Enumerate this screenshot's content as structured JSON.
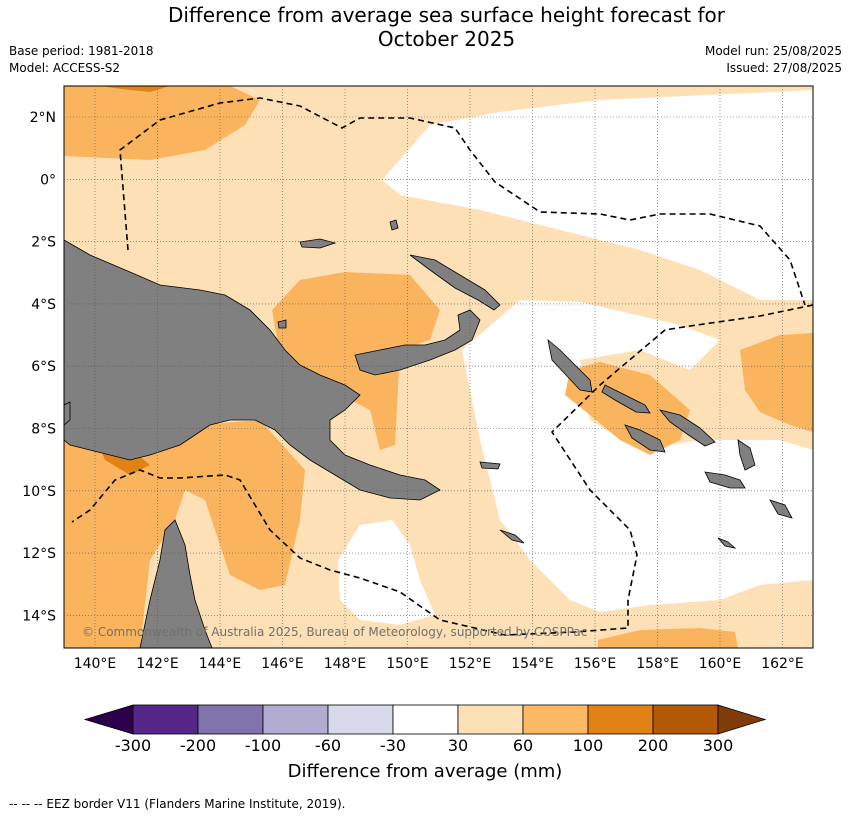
{
  "title_line1": "Difference from average sea surface height forecast for",
  "title_line2": "October 2025",
  "base_period": "Base period: 1981-2018",
  "model": "Model: ACCESS-S2",
  "model_run": "Model run: 25/08/2025",
  "issued": "Issued: 27/08/2025",
  "copyright": "© Commonwealth of Australia 2025, Bureau of Meteorology, supported by COSPPac",
  "footer": "-- -- -- EEZ border V11 (Flanders Marine Institute, 2019).",
  "map": {
    "lat_ticks": [
      "2°N",
      "0°",
      "2°S",
      "4°S",
      "6°S",
      "8°S",
      "10°S",
      "12°S",
      "14°S"
    ],
    "lon_ticks": [
      "140°E",
      "142°E",
      "144°E",
      "146°E",
      "148°E",
      "150°E",
      "152°E",
      "154°E",
      "156°E",
      "158°E",
      "160°E",
      "162°E"
    ],
    "colors": {
      "land": "#808080",
      "band_30_60": "#fde0b6",
      "band_60_100": "#fbb45e",
      "band_100_200": "#e08214"
    }
  },
  "colorbar": {
    "label": "Difference from average (mm)",
    "ticks": [
      "-300",
      "-200",
      "-100",
      "-60",
      "-30",
      "30",
      "60",
      "100",
      "200",
      "300"
    ],
    "colors": [
      "#542788",
      "#8073ac",
      "#b2abd2",
      "#d8daeb",
      "#ffffff",
      "#fee0b6",
      "#fdb863",
      "#e08214",
      "#b35806"
    ],
    "under_color": "#2d004b",
    "over_color": "#7f3b08"
  }
}
